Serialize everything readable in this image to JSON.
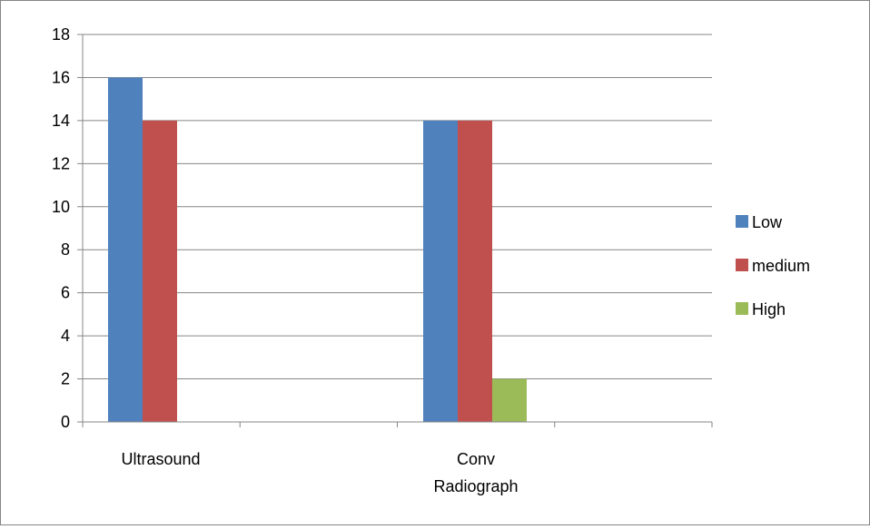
{
  "chart_data": {
    "type": "bar",
    "categories": [
      "Ultrasound",
      "Conv Radiograph"
    ],
    "category_label_lines": [
      [
        "Ultrasound"
      ],
      [
        "Conv",
        "Radiograph"
      ]
    ],
    "series": [
      {
        "name": "Low",
        "color": "#4F81BD",
        "values": [
          16,
          14
        ]
      },
      {
        "name": "medium",
        "color": "#C0504D",
        "values": [
          14,
          14
        ]
      },
      {
        "name": "High",
        "color": "#9BBB59",
        "values": [
          0,
          2
        ]
      }
    ],
    "ylim": [
      0,
      18
    ],
    "yticks": [
      0,
      2,
      4,
      6,
      8,
      10,
      12,
      14,
      16,
      18
    ],
    "grid": true,
    "legend_position": "right",
    "title": "",
    "xlabel": "",
    "ylabel": ""
  }
}
